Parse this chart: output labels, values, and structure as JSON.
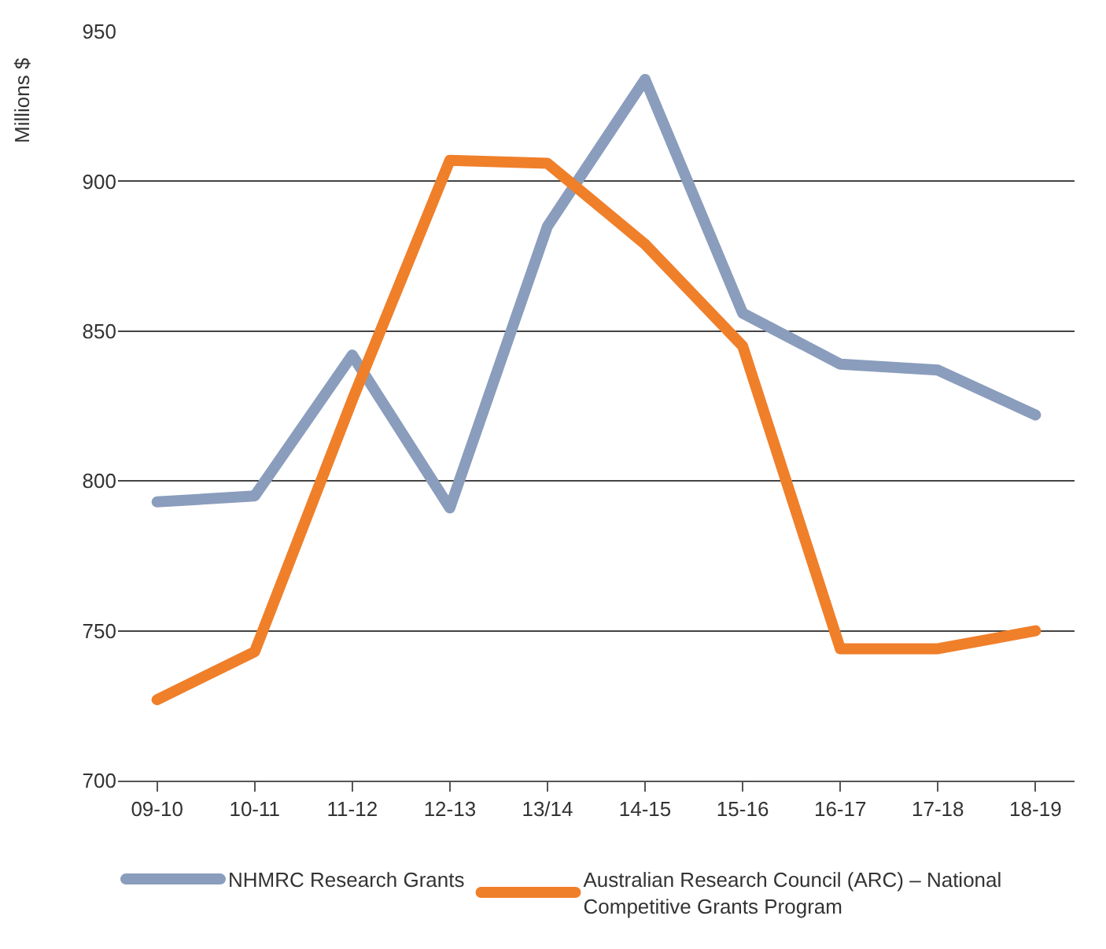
{
  "chart_data": {
    "type": "line",
    "ylabel": "Millions $",
    "categories": [
      "09-10",
      "10-11",
      "11-12",
      "12-13",
      "13/14",
      "14-15",
      "15-16",
      "16-17",
      "17-18",
      "18-19"
    ],
    "series": [
      {
        "name": "NHMRC Research Grants",
        "color": "#8a9dbd",
        "values": [
          793,
          795,
          842,
          791,
          885,
          934,
          856,
          839,
          837,
          822
        ]
      },
      {
        "name": "Australian Research Council (ARC) – National Competitive Grants Program",
        "color": "#f07f2a",
        "values": [
          727,
          743,
          827,
          907,
          906,
          879,
          845,
          744,
          744,
          750
        ]
      }
    ],
    "ylim": [
      700,
      950
    ],
    "yticks": [
      700,
      750,
      800,
      850,
      900,
      950
    ],
    "grid": "y",
    "legend": "bottom",
    "line_style": "solid"
  }
}
